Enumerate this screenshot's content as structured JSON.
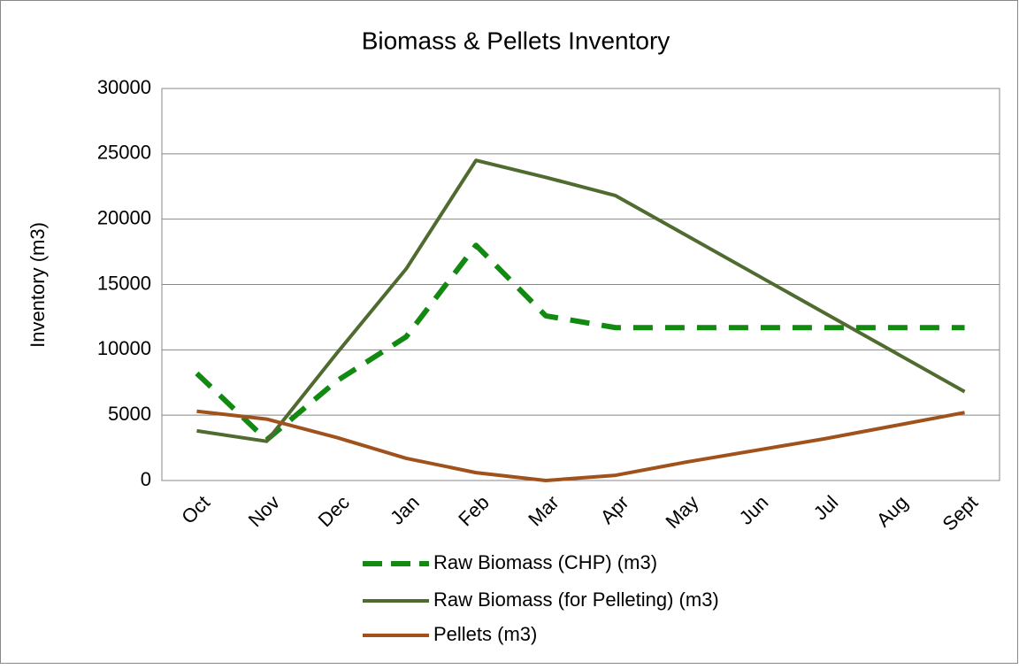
{
  "chart_data": {
    "type": "line",
    "title": "Biomass & Pellets Inventory",
    "y_label": "Inventory (m3)",
    "categories": [
      "Oct",
      "Nov",
      "Dec",
      "Jan",
      "Feb",
      "Mar",
      "Apr",
      "May",
      "Jun",
      "Jul",
      "Aug",
      "Sept"
    ],
    "series": [
      {
        "name": "Raw Biomass (CHP) (m3)",
        "color": "#128a12",
        "dashed": true,
        "values": [
          8200,
          3100,
          7600,
          11000,
          18000,
          12600,
          11700,
          11700,
          11700,
          11700,
          11700,
          11700
        ]
      },
      {
        "name": "Raw Biomass (for Pelleting) (m3)",
        "color": "#4f6b2f",
        "dashed": false,
        "values": [
          3800,
          3000,
          9700,
          16200,
          24500,
          23200,
          21800,
          18800,
          15800,
          12800,
          9800,
          6800
        ]
      },
      {
        "name": "Pellets (m3)",
        "color": "#a0521c",
        "dashed": false,
        "values": [
          5300,
          4700,
          3300,
          1700,
          600,
          0,
          400,
          1400,
          2300,
          3200,
          4200,
          5200
        ]
      }
    ],
    "ylim": [
      0,
      30000
    ],
    "yticks": [
      0,
      5000,
      10000,
      15000,
      20000,
      25000,
      30000
    ],
    "grid": true,
    "legend": "bottom"
  }
}
